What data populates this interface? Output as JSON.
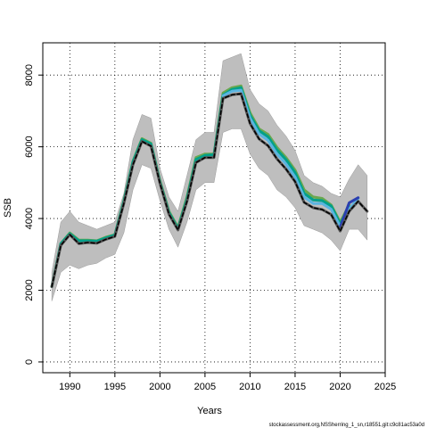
{
  "chart_data": {
    "type": "line",
    "xlabel": "Years",
    "ylabel": "SSB",
    "xlim": [
      1987,
      2025
    ],
    "ylim": [
      -300,
      8900
    ],
    "xticks": [
      1990,
      1995,
      2000,
      2005,
      2010,
      2015,
      2020,
      2025
    ],
    "yticks": [
      0,
      2000,
      4000,
      6000,
      8000
    ],
    "grid": true,
    "band": {
      "x": [
        1988,
        1989,
        1990,
        1991,
        1992,
        1993,
        1994,
        1995,
        1996,
        1997,
        1998,
        1999,
        2000,
        2001,
        2002,
        2003,
        2004,
        2005,
        2006,
        2007,
        2008,
        2009,
        2010,
        2011,
        2012,
        2013,
        2014,
        2015,
        2016,
        2017,
        2018,
        2019,
        2020,
        2021,
        2022,
        2023
      ],
      "lower": [
        1700,
        2500,
        2700,
        2600,
        2700,
        2750,
        2900,
        3000,
        3600,
        4800,
        5500,
        5400,
        4500,
        3700,
        3200,
        3900,
        4800,
        5000,
        5000,
        6400,
        6500,
        6500,
        5800,
        5400,
        5200,
        4800,
        4600,
        4300,
        3800,
        3700,
        3600,
        3400,
        3100,
        3700,
        3700,
        3400
      ],
      "upper": [
        2500,
        3900,
        4200,
        3900,
        3800,
        3700,
        3800,
        3900,
        4700,
        6200,
        6900,
        6800,
        5400,
        4600,
        4200,
        5200,
        6200,
        6400,
        6400,
        8400,
        8500,
        8600,
        7600,
        7200,
        7000,
        6600,
        6300,
        5900,
        5200,
        5000,
        4900,
        4700,
        4600,
        5100,
        5500,
        5200
      ]
    },
    "series": [
      {
        "color": "#6aa84f",
        "values": [
          2100,
          3300,
          3600,
          3400,
          3400,
          3380,
          3480,
          3550,
          4500,
          5600,
          6230,
          6100,
          5050,
          4200,
          3750,
          4600,
          5700,
          5800,
          5800,
          7500,
          7650,
          7700,
          6950,
          6500,
          6350,
          5980,
          5700,
          5350,
          4800,
          4600,
          4560,
          4380,
          3900,
          4380,
          null,
          null
        ]
      },
      {
        "color": "#00a08a",
        "values": [
          2100,
          3300,
          3580,
          3380,
          3380,
          3370,
          3460,
          3540,
          4480,
          5580,
          6200,
          6080,
          5020,
          4170,
          3720,
          4550,
          5650,
          5760,
          5780,
          7440,
          7600,
          7650,
          6880,
          6450,
          6280,
          5910,
          5640,
          5280,
          4700,
          4520,
          4500,
          4350,
          3850,
          4320,
          null,
          null
        ]
      },
      {
        "color": "#5ab4e0",
        "values": [
          null,
          null,
          null,
          null,
          null,
          null,
          null,
          null,
          null,
          null,
          null,
          null,
          null,
          null,
          null,
          null,
          null,
          null,
          null,
          7420,
          7550,
          7580,
          6800,
          6360,
          6180,
          5800,
          5520,
          5160,
          4600,
          4420,
          4420,
          4260,
          3780,
          4260,
          4560,
          null
        ]
      },
      {
        "color": "#2b3fb0",
        "values": [
          null,
          null,
          null,
          null,
          null,
          null,
          null,
          null,
          null,
          null,
          null,
          null,
          null,
          null,
          null,
          null,
          null,
          null,
          null,
          null,
          null,
          null,
          null,
          null,
          null,
          null,
          null,
          null,
          null,
          null,
          null,
          null,
          3760,
          4440,
          4580,
          null
        ]
      },
      {
        "color": "#555555",
        "values": [
          2100,
          3250,
          3550,
          3300,
          3330,
          3310,
          3420,
          3500,
          4420,
          5500,
          6150,
          6020,
          4980,
          4120,
          3680,
          4480,
          5560,
          5700,
          5700,
          7350,
          7450,
          7480,
          6650,
          6220,
          6030,
          5660,
          5380,
          5030,
          4450,
          4300,
          4250,
          4110,
          3650,
          4200,
          4480,
          4200
        ]
      },
      {
        "color": "#000000",
        "dashed": true,
        "values": [
          2100,
          3250,
          3550,
          3300,
          3330,
          3310,
          3420,
          3500,
          4420,
          5500,
          6150,
          6020,
          4980,
          4120,
          3680,
          4480,
          5560,
          5700,
          5700,
          7350,
          7450,
          7480,
          6650,
          6220,
          6030,
          5660,
          5380,
          5030,
          4450,
          4300,
          4250,
          4110,
          3650,
          4200,
          4480,
          4200
        ]
      }
    ]
  },
  "footer_text": "stockassessment.org,NSSherring_1_sn,r18551,git:c9c81ac53a0d"
}
